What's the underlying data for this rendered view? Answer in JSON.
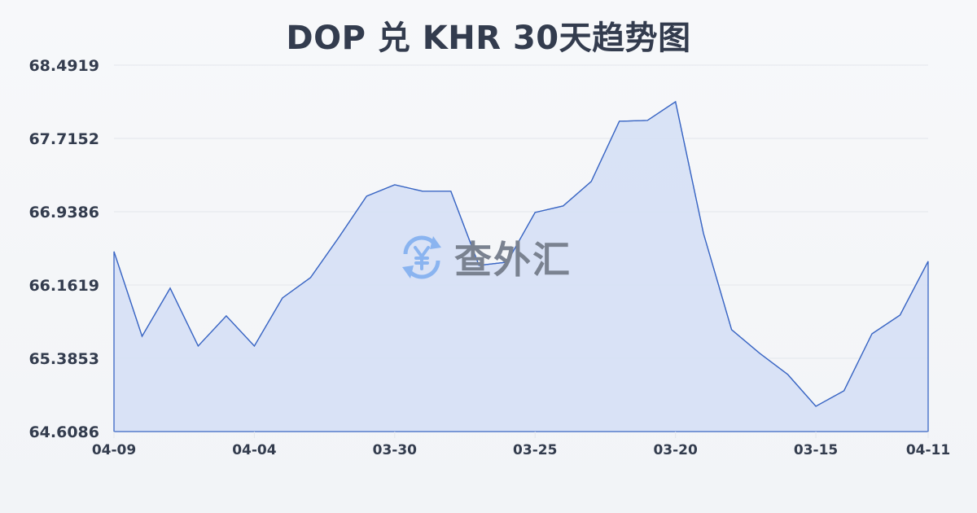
{
  "title": "DOP 兑 KHR 30天趋势图",
  "watermark": {
    "text": "查外汇",
    "icon": "yen-exchange-icon"
  },
  "colors": {
    "line": "#3a66c4",
    "fill": "#d6e0f5",
    "grid": "#e3e6ec",
    "text": "#333c4e",
    "watermark_icon": "#8ab4f0",
    "watermark_text": "#7a8290"
  },
  "y_ticks": [
    "68.4919",
    "67.7152",
    "66.9386",
    "66.1619",
    "65.3853",
    "64.6086"
  ],
  "x_ticks": [
    {
      "label": "04-09",
      "index": 0
    },
    {
      "label": "04-04",
      "index": 5
    },
    {
      "label": "03-30",
      "index": 10
    },
    {
      "label": "03-25",
      "index": 15
    },
    {
      "label": "03-20",
      "index": 20
    },
    {
      "label": "03-15",
      "index": 25
    },
    {
      "label": "04-11",
      "index": 29
    }
  ],
  "chart_data": {
    "type": "area",
    "title": "DOP 兑 KHR 30天趋势图",
    "xlabel": "",
    "ylabel": "",
    "ylim": [
      64.6086,
      68.4919
    ],
    "grid": true,
    "legend": "none",
    "x_tick_labels": [
      "04-09",
      "04-04",
      "03-30",
      "03-25",
      "03-20",
      "03-15",
      "04-11"
    ],
    "y_tick_labels": [
      "68.4919",
      "67.7152",
      "66.9386",
      "66.1619",
      "65.3853",
      "64.6086"
    ],
    "series": [
      {
        "name": "DOP/KHR",
        "values": [
          66.5166,
          65.6192,
          66.1284,
          65.5156,
          65.8349,
          65.5156,
          66.0247,
          66.2405,
          66.6633,
          67.1035,
          67.2243,
          67.1552,
          67.1552,
          66.3699,
          66.4044,
          66.9308,
          67.0,
          67.2589,
          67.8975,
          67.9061,
          68.1046,
          66.7066,
          65.6883,
          65.4381,
          65.2137,
          64.8771,
          65.0411,
          65.6451,
          65.8436,
          66.413
        ]
      }
    ]
  }
}
